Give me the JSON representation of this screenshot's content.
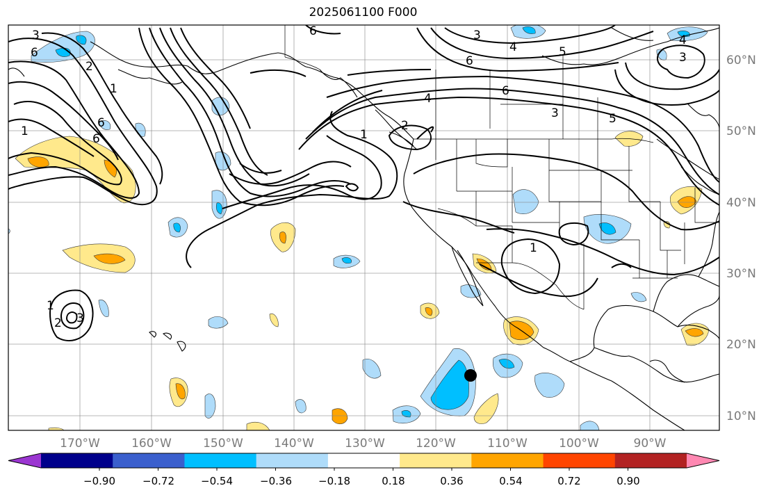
{
  "title": "2025061100 F000",
  "lon_labels": [
    "170°W",
    "160°W",
    "150°W",
    "140°W",
    "130°W",
    "120°W",
    "110°W",
    "100°W",
    "90°W"
  ],
  "lat_labels": [
    "60°N",
    "50°N",
    "40°N",
    "30°N",
    "20°N",
    "10°N"
  ],
  "colorbar": {
    "tick_labels": [
      "−0.90",
      "−0.72",
      "−0.54",
      "−0.36",
      "−0.18",
      "0.18",
      "0.36",
      "0.54",
      "0.72",
      "0.90"
    ],
    "colors": [
      "#9b36d1",
      "#00008b",
      "#3a5fcd",
      "#00bfff",
      "#afdcfa",
      "#ffffff",
      "#ffe98c",
      "#ffa500",
      "#ff4500",
      "#b22222",
      "#ff88b2"
    ]
  },
  "contour_labels": [
    {
      "text": "3",
      "id": "c1"
    },
    {
      "text": "6",
      "id": "c2"
    },
    {
      "text": "2",
      "id": "c3"
    },
    {
      "text": "1",
      "id": "c4"
    },
    {
      "text": "6",
      "id": "c5"
    },
    {
      "text": "6",
      "id": "c6"
    },
    {
      "text": "6",
      "id": "c7"
    },
    {
      "text": "4",
      "id": "c8"
    },
    {
      "text": "5",
      "id": "c9"
    },
    {
      "text": "3",
      "id": "c10"
    },
    {
      "text": "6",
      "id": "c11"
    },
    {
      "text": "4",
      "id": "c12"
    },
    {
      "text": "3",
      "id": "c13"
    },
    {
      "text": "4",
      "id": "c14"
    },
    {
      "text": "1",
      "id": "c15"
    },
    {
      "text": "2",
      "id": "c16"
    },
    {
      "text": "6",
      "id": "c17"
    },
    {
      "text": "3",
      "id": "c18"
    },
    {
      "text": "5",
      "id": "c19"
    },
    {
      "text": "1",
      "id": "c20"
    },
    {
      "text": "1",
      "id": "c21"
    },
    {
      "text": "1",
      "id": "c22"
    },
    {
      "text": "3",
      "id": "c23"
    },
    {
      "text": "2",
      "id": "c24"
    }
  ],
  "marker": {
    "name": "storm-position",
    "color": "#000000"
  }
}
